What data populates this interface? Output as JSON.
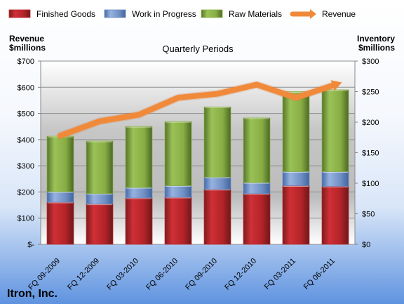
{
  "chart_data": {
    "type": "bar",
    "stacked": true,
    "title": "Quarterly Periods",
    "company": "Itron, Inc.",
    "categories": [
      "FQ 09-2009",
      "FQ 12-2009",
      "FQ 03-2010",
      "FQ 06-2010",
      "FQ 09-2010",
      "FQ 12-2010",
      "FQ 03-2011",
      "FQ 06-2011"
    ],
    "left_axis": {
      "label_line1": "Revenue",
      "label_line2": "$millions",
      "range": [
        0,
        700
      ],
      "tick_values": [
        0,
        100,
        200,
        300,
        400,
        500,
        600,
        700
      ],
      "tick_labels": [
        "$-",
        "$100",
        "$200",
        "$300",
        "$400",
        "$500",
        "$600",
        "$700"
      ]
    },
    "right_axis": {
      "label_line1": "Inventory",
      "label_line2": "$millions",
      "range": [
        0,
        300
      ],
      "tick_values": [
        0,
        50,
        100,
        150,
        200,
        250,
        300
      ],
      "tick_labels": [
        "$0",
        "$50",
        "$100",
        "$150",
        "$200",
        "$250",
        "$300"
      ]
    },
    "series": [
      {
        "name": "Finished Goods",
        "kind": "bar",
        "axis": "right",
        "color": "#c0282d",
        "values": [
          69,
          66,
          76,
          77,
          90,
          83,
          96,
          95
        ]
      },
      {
        "name": "Work in Progress",
        "kind": "bar",
        "axis": "right",
        "color": "#6f8fc4",
        "values": [
          17,
          17,
          17,
          19,
          20,
          18,
          23,
          24
        ]
      },
      {
        "name": "Raw Materials",
        "kind": "bar",
        "axis": "right",
        "color": "#8fb34a",
        "values": [
          91,
          86,
          100,
          105,
          115,
          106,
          131,
          134
        ]
      },
      {
        "name": "Revenue",
        "kind": "line",
        "axis": "left",
        "color": "#f08a3a",
        "values": [
          415,
          470,
          495,
          560,
          575,
          610,
          560,
          610
        ]
      }
    ],
    "grid": true,
    "legend_position": "top"
  }
}
